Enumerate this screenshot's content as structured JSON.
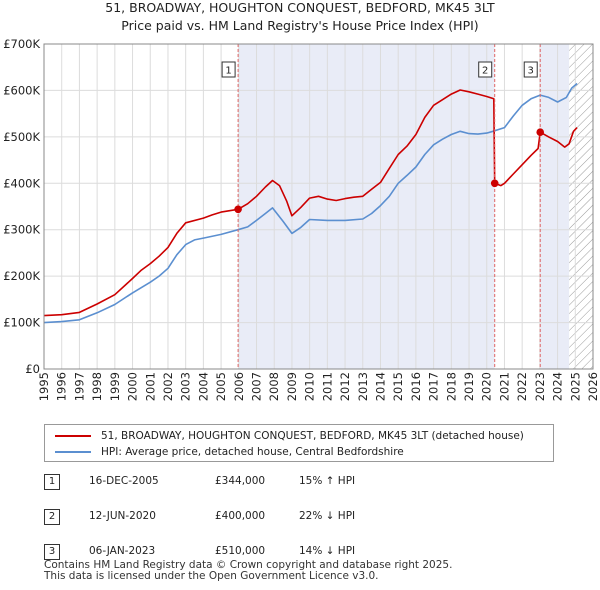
{
  "chart_data": {
    "type": "line",
    "title": "51, BROADWAY, HOUGHTON CONQUEST, BEDFORD, MK45 3LT",
    "subtitle": "Price paid vs. HM Land Registry's House Price Index (HPI)",
    "x_ticks": [
      "1995",
      "1996",
      "1997",
      "1998",
      "1999",
      "2000",
      "2001",
      "2002",
      "2003",
      "2004",
      "2005",
      "2006",
      "2007",
      "2008",
      "2009",
      "2010",
      "2011",
      "2012",
      "2013",
      "2014",
      "2015",
      "2016",
      "2017",
      "2018",
      "2019",
      "2020",
      "2021",
      "2022",
      "2023",
      "2024",
      "2025",
      "2026"
    ],
    "y_ticks": [
      "£0",
      "£100K",
      "£200K",
      "£300K",
      "£400K",
      "£500K",
      "£600K",
      "£700K"
    ],
    "xlim": [
      1995,
      2026
    ],
    "ylim": [
      0,
      700000
    ],
    "grid": true,
    "shaded_ranges": [
      [
        2005.96,
        2020.45
      ],
      [
        2023.02,
        2024.65
      ]
    ],
    "forecast_hatch_from": 2024.65,
    "series": [
      {
        "name": "51, BROADWAY, HOUGHTON CONQUEST, BEDFORD, MK45 3LT (detached house)",
        "color": "#cc0000",
        "points": [
          [
            1995.0,
            115000
          ],
          [
            1996.0,
            117000
          ],
          [
            1997.0,
            122000
          ],
          [
            1998.0,
            140000
          ],
          [
            1999.0,
            160000
          ],
          [
            2000.0,
            195000
          ],
          [
            2000.5,
            213000
          ],
          [
            2001.0,
            227000
          ],
          [
            2001.5,
            243000
          ],
          [
            2002.0,
            262000
          ],
          [
            2002.5,
            292000
          ],
          [
            2003.0,
            315000
          ],
          [
            2004.0,
            325000
          ],
          [
            2004.5,
            332000
          ],
          [
            2005.0,
            338000
          ],
          [
            2005.96,
            344000
          ],
          [
            2006.5,
            356000
          ],
          [
            2007.0,
            372000
          ],
          [
            2007.5,
            392000
          ],
          [
            2007.9,
            406000
          ],
          [
            2008.3,
            395000
          ],
          [
            2008.7,
            362000
          ],
          [
            2009.0,
            330000
          ],
          [
            2009.5,
            348000
          ],
          [
            2010.0,
            368000
          ],
          [
            2010.5,
            372000
          ],
          [
            2011.0,
            366000
          ],
          [
            2011.5,
            363000
          ],
          [
            2012.0,
            367000
          ],
          [
            2012.5,
            370000
          ],
          [
            2013.0,
            372000
          ],
          [
            2013.5,
            387000
          ],
          [
            2014.0,
            402000
          ],
          [
            2014.5,
            432000
          ],
          [
            2015.0,
            462000
          ],
          [
            2015.5,
            480000
          ],
          [
            2016.0,
            505000
          ],
          [
            2016.5,
            542000
          ],
          [
            2017.0,
            568000
          ],
          [
            2017.5,
            580000
          ],
          [
            2018.0,
            592000
          ],
          [
            2018.5,
            601000
          ],
          [
            2019.0,
            597000
          ],
          [
            2019.5,
            592000
          ],
          [
            2020.0,
            587000
          ],
          [
            2020.4,
            582000
          ],
          [
            2020.45,
            400000
          ],
          [
            2020.8,
            395000
          ],
          [
            2021.0,
            400000
          ],
          [
            2021.5,
            420000
          ],
          [
            2022.0,
            440000
          ],
          [
            2022.5,
            460000
          ],
          [
            2022.9,
            475000
          ],
          [
            2023.02,
            510000
          ],
          [
            2023.5,
            500000
          ],
          [
            2024.0,
            490000
          ],
          [
            2024.4,
            478000
          ],
          [
            2024.65,
            485000
          ],
          [
            2024.9,
            512000
          ],
          [
            2025.1,
            520000
          ]
        ]
      },
      {
        "name": "HPI: Average price, detached house, Central Bedfordshire",
        "color": "#5b8fd0",
        "points": [
          [
            1995.0,
            100000
          ],
          [
            1996.0,
            102000
          ],
          [
            1997.0,
            106000
          ],
          [
            1998.0,
            121000
          ],
          [
            1999.0,
            139000
          ],
          [
            2000.0,
            164000
          ],
          [
            2001.0,
            187000
          ],
          [
            2001.5,
            200000
          ],
          [
            2002.0,
            217000
          ],
          [
            2002.5,
            246000
          ],
          [
            2003.0,
            268000
          ],
          [
            2003.5,
            278000
          ],
          [
            2004.0,
            282000
          ],
          [
            2005.0,
            290000
          ],
          [
            2005.96,
            300000
          ],
          [
            2006.5,
            306000
          ],
          [
            2007.0,
            320000
          ],
          [
            2007.5,
            335000
          ],
          [
            2007.9,
            347000
          ],
          [
            2008.5,
            318000
          ],
          [
            2009.0,
            292000
          ],
          [
            2009.5,
            305000
          ],
          [
            2010.0,
            322000
          ],
          [
            2011.0,
            320000
          ],
          [
            2012.0,
            320000
          ],
          [
            2013.0,
            323000
          ],
          [
            2013.5,
            335000
          ],
          [
            2014.0,
            352000
          ],
          [
            2014.5,
            372000
          ],
          [
            2015.0,
            400000
          ],
          [
            2015.5,
            417000
          ],
          [
            2016.0,
            435000
          ],
          [
            2016.5,
            462000
          ],
          [
            2017.0,
            483000
          ],
          [
            2017.5,
            495000
          ],
          [
            2018.0,
            505000
          ],
          [
            2018.5,
            512000
          ],
          [
            2019.0,
            507000
          ],
          [
            2019.5,
            506000
          ],
          [
            2020.0,
            508000
          ],
          [
            2020.45,
            513000
          ],
          [
            2021.0,
            520000
          ],
          [
            2021.5,
            545000
          ],
          [
            2022.0,
            568000
          ],
          [
            2022.5,
            582000
          ],
          [
            2023.02,
            590000
          ],
          [
            2023.5,
            585000
          ],
          [
            2024.0,
            575000
          ],
          [
            2024.5,
            585000
          ],
          [
            2024.8,
            605000
          ],
          [
            2025.1,
            615000
          ]
        ]
      }
    ],
    "annotations": [
      {
        "label": "1",
        "x": 2005.96,
        "y": 344000
      },
      {
        "label": "2",
        "x": 2020.45,
        "y": 400000
      },
      {
        "label": "3",
        "x": 2023.02,
        "y": 510000
      }
    ]
  },
  "legend": {
    "items": [
      {
        "label": "51, BROADWAY, HOUGHTON CONQUEST, BEDFORD, MK45 3LT (detached house)",
        "color": "#cc0000"
      },
      {
        "label": "HPI: Average price, detached house, Central Bedfordshire",
        "color": "#5b8fd0"
      }
    ]
  },
  "sales": [
    {
      "num": "1",
      "date": "16-DEC-2005",
      "price": "£344,000",
      "hpi": "15% ↑ HPI"
    },
    {
      "num": "2",
      "date": "12-JUN-2020",
      "price": "£400,000",
      "hpi": "22% ↓ HPI"
    },
    {
      "num": "3",
      "date": "06-JAN-2023",
      "price": "£510,000",
      "hpi": "14% ↓ HPI"
    }
  ],
  "footer": {
    "line1": "Contains HM Land Registry data © Crown copyright and database right 2025.",
    "line2": "This data is licensed under the Open Government Licence v3.0."
  }
}
